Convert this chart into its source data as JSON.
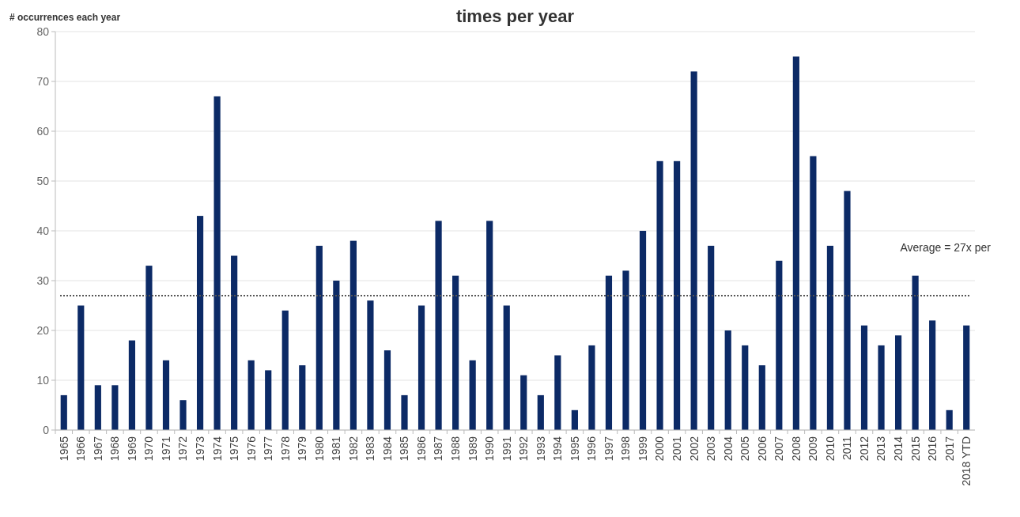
{
  "chart_data": {
    "type": "bar",
    "title": "times per year",
    "ylabel": "# occurrences each year",
    "categories": [
      "1965",
      "1966",
      "1967",
      "1968",
      "1969",
      "1970",
      "1971",
      "1972",
      "1973",
      "1974",
      "1975",
      "1976",
      "1977",
      "1978",
      "1979",
      "1980",
      "1981",
      "1982",
      "1983",
      "1984",
      "1985",
      "1986",
      "1987",
      "1988",
      "1989",
      "1990",
      "1991",
      "1992",
      "1993",
      "1994",
      "1995",
      "1996",
      "1997",
      "1998",
      "1999",
      "2000",
      "2001",
      "2002",
      "2003",
      "2004",
      "2005",
      "2006",
      "2007",
      "2008",
      "2009",
      "2010",
      "2011",
      "2012",
      "2013",
      "2014",
      "2015",
      "2016",
      "2017",
      "2018 YTD"
    ],
    "values": [
      7,
      25,
      9,
      9,
      18,
      33,
      14,
      6,
      43,
      67,
      35,
      14,
      12,
      24,
      13,
      37,
      30,
      38,
      26,
      16,
      7,
      25,
      42,
      31,
      14,
      42,
      25,
      11,
      7,
      15,
      4,
      17,
      31,
      32,
      40,
      54,
      54,
      72,
      37,
      20,
      17,
      13,
      34,
      75,
      55,
      37,
      48,
      21,
      17,
      19,
      31,
      22,
      4,
      21
    ],
    "color": "#0c2a66",
    "ylim": [
      0,
      80
    ],
    "yticks": [
      0,
      10,
      20,
      30,
      40,
      50,
      60,
      70,
      80
    ],
    "grid": "y",
    "ref_lines": [
      {
        "axis": "y",
        "value": 27,
        "label": "Average = 27x per",
        "color": "#555555",
        "line_style": "dotted"
      }
    ]
  }
}
